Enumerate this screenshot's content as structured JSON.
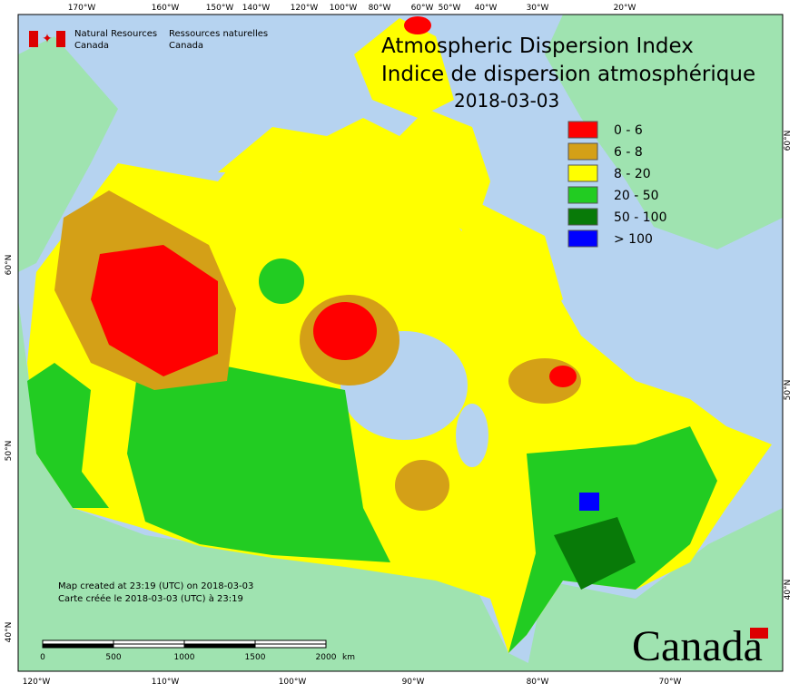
{
  "header": {
    "agency_en": [
      "Natural Resources",
      "Canada"
    ],
    "agency_fr": [
      "Ressources naturelles",
      "Canada"
    ]
  },
  "title": [
    "Atmospheric Dispersion Index",
    "Indice de dispersion atmosphérique"
  ],
  "date": "2018-03-03",
  "legend": [
    {
      "label": "0 - 6",
      "color": "#ff0000"
    },
    {
      "label": "6 - 8",
      "color": "#d4a017"
    },
    {
      "label": "8 - 20",
      "color": "#ffff00"
    },
    {
      "label": "20 - 50",
      "color": "#22cc22"
    },
    {
      "label": "50 - 100",
      "color": "#087a08"
    },
    {
      "label": "> 100",
      "color": "#0000ff"
    }
  ],
  "graticule": {
    "top": [
      "170°W",
      "160°W",
      "150°W",
      "140°W",
      "120°W",
      "100°W",
      "80°W",
      "60°W",
      "50°W",
      "40°W",
      "30°W",
      "20°W"
    ],
    "bottom": [
      "120°W",
      "110°W",
      "100°W",
      "90°W",
      "80°W",
      "70°W"
    ],
    "left": [
      "60°N",
      "50°N",
      "40°N"
    ],
    "right": [
      "60°N",
      "50°N",
      "40°N"
    ]
  },
  "footer": [
    "Map created at 23:19 (UTC) on 2018-03-03",
    "Carte créée le 2018-03-03 (UTC) à 23:19"
  ],
  "scale": {
    "ticks": [
      "0",
      "500",
      "1000",
      "1500",
      "2000"
    ],
    "unit": "km"
  },
  "wordmark": "Canada"
}
